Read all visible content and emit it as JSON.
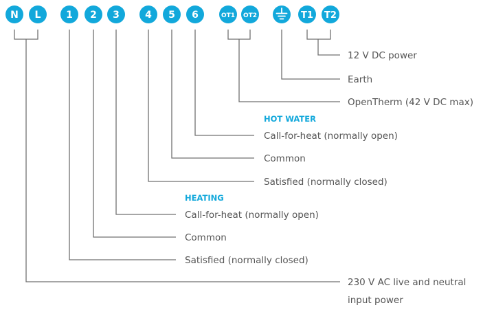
{
  "terminals": {
    "n": "N",
    "l": "L",
    "t1": "1",
    "t2": "2",
    "t3": "3",
    "t4": "4",
    "t5": "5",
    "t6": "6",
    "ot1": "OT1",
    "ot2": "OT2",
    "earth": "earth-icon",
    "tt1": "T1",
    "tt2": "T2"
  },
  "labels": {
    "dc_power": "12 V DC power",
    "earth": "Earth",
    "opentherm": "OpenTherm (42 V DC max)",
    "hw_call": "Call-for-heat (normally open)",
    "hw_common": "Common",
    "hw_satisfied": "Satisfied (normally closed)",
    "ht_call": "Call-for-heat (normally open)",
    "ht_common": "Common",
    "ht_satisfied": "Satisfied (normally closed)",
    "ac_power_line1": "230 V AC live and neutral",
    "ac_power_line2": "input power"
  },
  "headings": {
    "hot_water": "HOT WATER",
    "heating": "HEATING"
  },
  "colors": {
    "accent": "#12A8DB",
    "line": "#707070",
    "text": "#555555"
  }
}
